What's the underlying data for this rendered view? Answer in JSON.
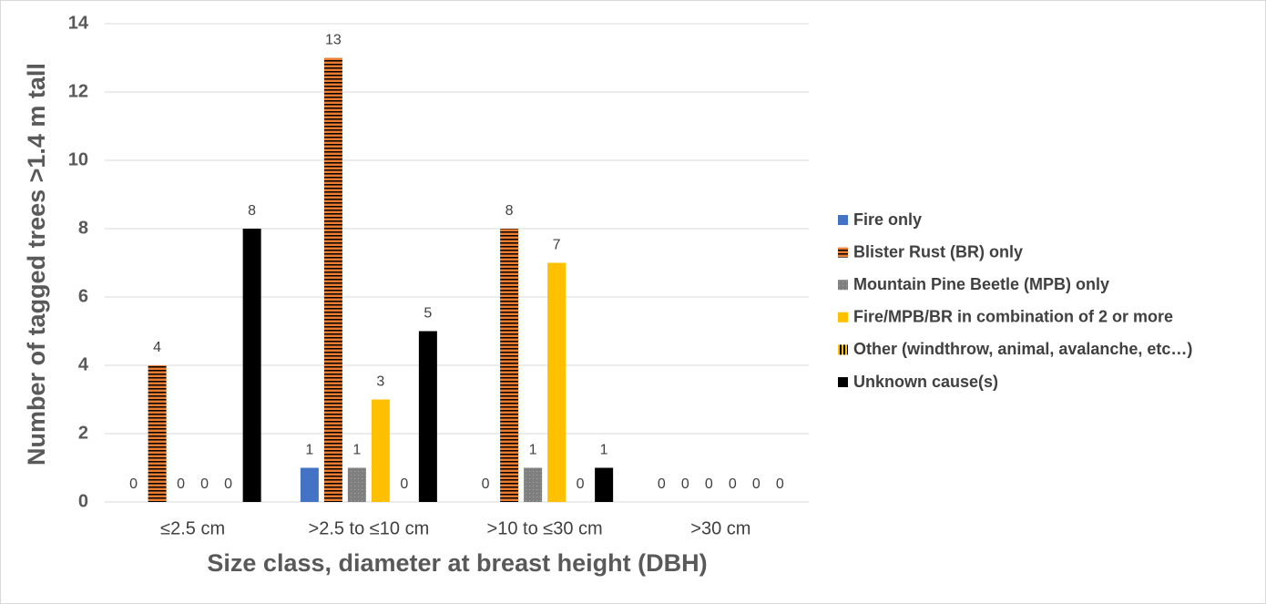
{
  "chart_data": {
    "type": "bar",
    "categories": [
      "≤2.5 cm",
      ">2.5 to ≤10 cm",
      ">10 to ≤30 cm",
      ">30 cm"
    ],
    "series": [
      {
        "name": "Fire only",
        "color": "#4472c4",
        "values": [
          0,
          1,
          0,
          0
        ]
      },
      {
        "name": "Blister Rust (BR) only",
        "color": "#ed7d31",
        "pattern": "horizontal-stripes",
        "values": [
          4,
          13,
          8,
          0
        ]
      },
      {
        "name": "Mountain Pine Beetle (MPB) only",
        "color": "#7f7f7f",
        "pattern": "dots",
        "values": [
          0,
          1,
          1,
          0
        ]
      },
      {
        "name": "Fire/MPB/BR in combination of 2 or more",
        "color": "#ffc000",
        "values": [
          0,
          3,
          7,
          0
        ]
      },
      {
        "name": "Other (windthrow,  animal, avalanche, etc…)",
        "color": "#ffc000",
        "pattern": "vertical-stripes",
        "values": [
          0,
          0,
          0,
          0
        ]
      },
      {
        "name": "Unknown cause(s)",
        "color": "#000000",
        "values": [
          8,
          5,
          1,
          0
        ]
      }
    ],
    "xlabel": "Size class, diameter at breast height (DBH)",
    "ylabel": "Number of tagged trees >1.4 m tall",
    "ylim": [
      0,
      14
    ],
    "yticks": [
      0,
      2,
      4,
      6,
      8,
      10,
      12,
      14
    ],
    "grid": true,
    "legend": "right"
  }
}
